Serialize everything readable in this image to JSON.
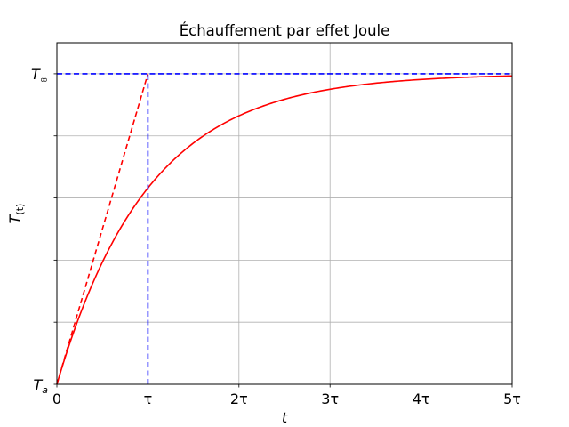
{
  "chart_data": {
    "type": "line",
    "title": "Échauffement par effet Joule",
    "xlabel": {
      "base": "t",
      "sub": ""
    },
    "ylabel": {
      "base": "T",
      "sub": "(t)"
    },
    "xlim": [
      0,
      5
    ],
    "ylim": [
      0,
      1.1
    ],
    "grid": true,
    "x_ticks": [
      {
        "value": 0,
        "label": "0"
      },
      {
        "value": 1,
        "label": "τ"
      },
      {
        "value": 2,
        "label": "2τ"
      },
      {
        "value": 3,
        "label": "3τ"
      },
      {
        "value": 4,
        "label": "4τ"
      },
      {
        "value": 5,
        "label": "5τ"
      }
    ],
    "y_ticks": [
      {
        "value": 0,
        "base": "T",
        "sub": "a"
      },
      {
        "value": 0.2,
        "base": "",
        "sub": ""
      },
      {
        "value": 0.4,
        "base": "",
        "sub": ""
      },
      {
        "value": 0.6,
        "base": "",
        "sub": ""
      },
      {
        "value": 0.8,
        "base": "",
        "sub": ""
      },
      {
        "value": 1.0,
        "base": "T",
        "sub": "∞"
      }
    ],
    "series": [
      {
        "kind": "curve",
        "function": "1 - exp(-t/τ)",
        "color": "#ff0000",
        "style": "solid",
        "x": [
          0,
          0.25,
          0.5,
          0.75,
          1,
          1.5,
          2,
          2.5,
          3,
          3.5,
          4,
          4.5,
          5
        ],
        "y": [
          0,
          0.221,
          0.393,
          0.528,
          0.632,
          0.777,
          0.865,
          0.918,
          0.95,
          0.97,
          0.982,
          0.989,
          0.993
        ]
      },
      {
        "kind": "tangent",
        "color": "#ff0000",
        "style": "dashed",
        "x": [
          0,
          1
        ],
        "y": [
          0,
          1
        ]
      },
      {
        "kind": "asymptote-horizontal",
        "color": "#0000ff",
        "style": "dashed",
        "x": [
          0,
          5
        ],
        "y": [
          1,
          1
        ]
      },
      {
        "kind": "vertical-tau",
        "color": "#0000ff",
        "style": "dashed",
        "x": [
          1,
          1
        ],
        "y": [
          0,
          1
        ]
      }
    ]
  }
}
